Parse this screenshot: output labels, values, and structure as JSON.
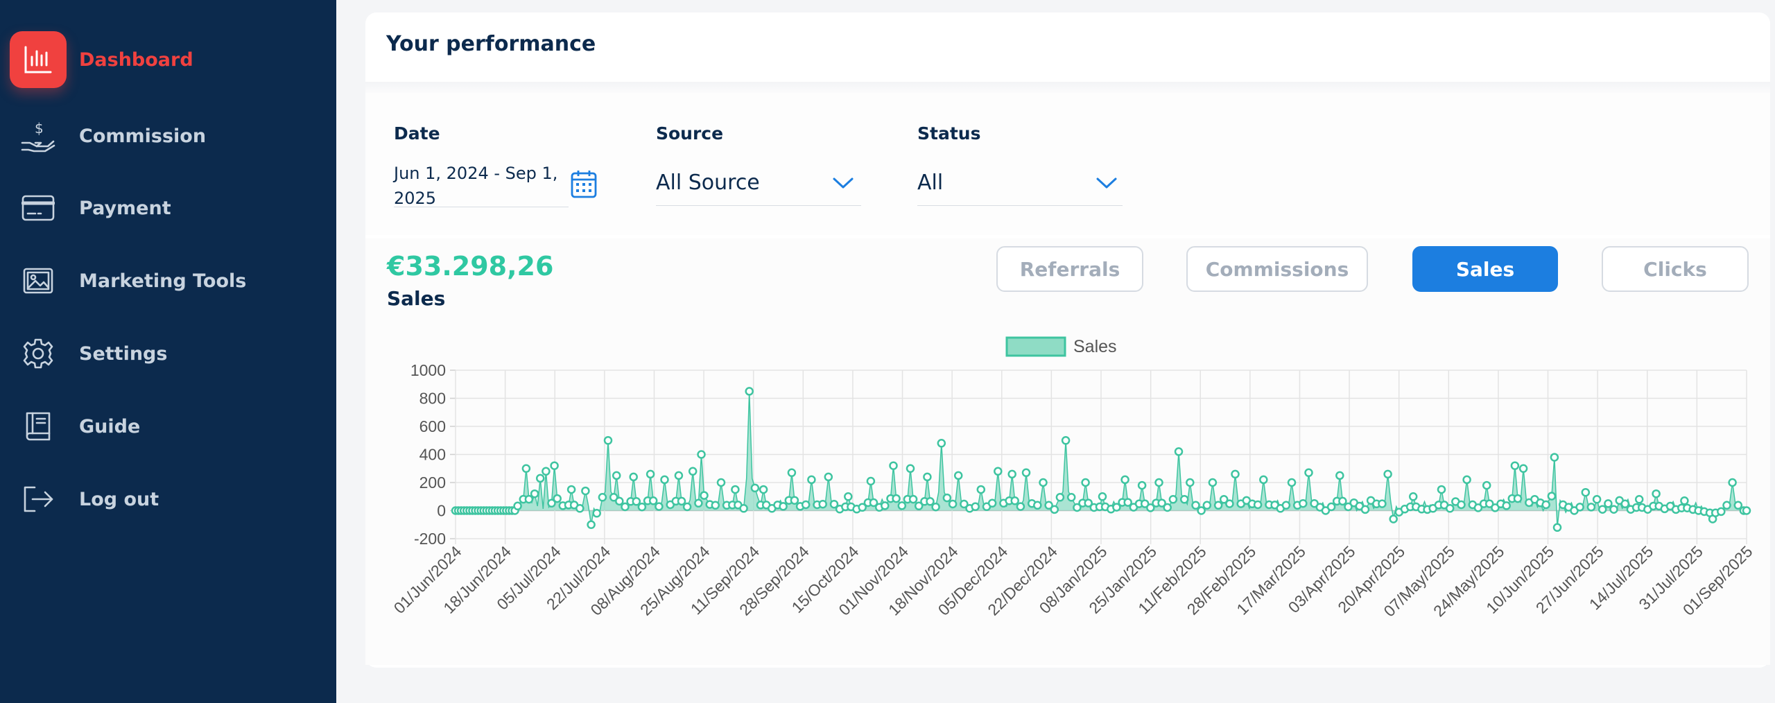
{
  "colors": {
    "sidebar_bg": "#0c2a4d",
    "active_red": "#f0413f",
    "accent_green": "#2fc8a2",
    "primary_blue": "#1c7ee0",
    "series_fill": "#8fdcc5",
    "series_stroke": "#3ec4a0"
  },
  "sidebar": {
    "items": [
      {
        "label": "Dashboard",
        "icon": "bar-chart-icon",
        "active": true
      },
      {
        "label": "Commission",
        "icon": "hand-dollar-icon",
        "active": false
      },
      {
        "label": "Payment",
        "icon": "credit-card-icon",
        "active": false
      },
      {
        "label": "Marketing Tools",
        "icon": "image-icon",
        "active": false
      },
      {
        "label": "Settings",
        "icon": "gear-icon",
        "active": false
      },
      {
        "label": "Guide",
        "icon": "book-icon",
        "active": false
      },
      {
        "label": "Log out",
        "icon": "logout-icon",
        "active": false
      }
    ]
  },
  "card": {
    "title": "Your performance"
  },
  "filters": {
    "date": {
      "label": "Date",
      "value": "Jun 1, 2024 - Sep 1, 2025",
      "icon": "calendar-icon"
    },
    "source": {
      "label": "Source",
      "value": "All Source"
    },
    "status": {
      "label": "Status",
      "value": "All"
    }
  },
  "summary": {
    "amount": "€33.298,26",
    "metric": "Sales"
  },
  "tabs": [
    {
      "label": "Referrals",
      "active": false
    },
    {
      "label": "Commissions",
      "active": false
    },
    {
      "label": "Sales",
      "active": true
    },
    {
      "label": "Clicks",
      "active": false
    }
  ],
  "chart_data": {
    "type": "line",
    "legend": [
      "Sales"
    ],
    "legend_position": "top-center",
    "grid": true,
    "ylim": [
      -200,
      1000
    ],
    "yticks": [
      1000,
      800,
      600,
      400,
      200,
      0,
      -200
    ],
    "x_tick_labels": [
      "01/Jun/2024",
      "18/Jun/2024",
      "05/Jul/2024",
      "22/Jul/2024",
      "08/Aug/2024",
      "25/Aug/2024",
      "11/Sep/2024",
      "28/Sep/2024",
      "15/Oct/2024",
      "01/Nov/2024",
      "18/Nov/2024",
      "05/Dec/2024",
      "22/Dec/2024",
      "08/Jan/2025",
      "25/Jan/2025",
      "11/Feb/2025",
      "28/Feb/2025",
      "17/Mar/2025",
      "03/Apr/2025",
      "20/Apr/2025",
      "07/May/2025",
      "24/May/2025",
      "10/Jun/2025",
      "27/Jun/2025",
      "14/Jul/2025",
      "31/Jul/2025",
      "01/Sep/2025"
    ],
    "series": [
      {
        "name": "Sales",
        "x_start": "2024-06-01",
        "x_end": "2025-09-01",
        "peaks": [
          {
            "date": "2024-06-26",
            "value": 300
          },
          {
            "date": "2024-06-29",
            "value": 120
          },
          {
            "date": "2024-07-01",
            "value": 230
          },
          {
            "date": "2024-07-03",
            "value": 280
          },
          {
            "date": "2024-07-06",
            "value": 320
          },
          {
            "date": "2024-07-12",
            "value": 150
          },
          {
            "date": "2024-07-17",
            "value": 140
          },
          {
            "date": "2024-07-19",
            "value": -100
          },
          {
            "date": "2024-07-25",
            "value": 500
          },
          {
            "date": "2024-07-28",
            "value": 250
          },
          {
            "date": "2024-08-03",
            "value": 240
          },
          {
            "date": "2024-08-09",
            "value": 260
          },
          {
            "date": "2024-08-14",
            "value": 220
          },
          {
            "date": "2024-08-19",
            "value": 250
          },
          {
            "date": "2024-08-24",
            "value": 280
          },
          {
            "date": "2024-08-27",
            "value": 400
          },
          {
            "date": "2024-09-03",
            "value": 200
          },
          {
            "date": "2024-09-08",
            "value": 150
          },
          {
            "date": "2024-09-13",
            "value": 850
          },
          {
            "date": "2024-09-18",
            "value": 150
          },
          {
            "date": "2024-09-28",
            "value": 270
          },
          {
            "date": "2024-10-05",
            "value": 220
          },
          {
            "date": "2024-10-11",
            "value": 240
          },
          {
            "date": "2024-10-18",
            "value": 100
          },
          {
            "date": "2024-10-26",
            "value": 210
          },
          {
            "date": "2024-11-03",
            "value": 320
          },
          {
            "date": "2024-11-09",
            "value": 300
          },
          {
            "date": "2024-11-15",
            "value": 240
          },
          {
            "date": "2024-11-20",
            "value": 480
          },
          {
            "date": "2024-11-26",
            "value": 250
          },
          {
            "date": "2024-12-04",
            "value": 150
          },
          {
            "date": "2024-12-10",
            "value": 280
          },
          {
            "date": "2024-12-15",
            "value": 260
          },
          {
            "date": "2024-12-20",
            "value": 270
          },
          {
            "date": "2024-12-26",
            "value": 200
          },
          {
            "date": "2025-01-03",
            "value": 500
          },
          {
            "date": "2025-01-10",
            "value": 200
          },
          {
            "date": "2025-01-16",
            "value": 100
          },
          {
            "date": "2025-01-24",
            "value": 220
          },
          {
            "date": "2025-01-30",
            "value": 180
          },
          {
            "date": "2025-02-05",
            "value": 200
          },
          {
            "date": "2025-02-12",
            "value": 420
          },
          {
            "date": "2025-02-16",
            "value": 200
          },
          {
            "date": "2025-02-24",
            "value": 200
          },
          {
            "date": "2025-03-04",
            "value": 260
          },
          {
            "date": "2025-03-14",
            "value": 220
          },
          {
            "date": "2025-03-24",
            "value": 200
          },
          {
            "date": "2025-03-30",
            "value": 270
          },
          {
            "date": "2025-04-10",
            "value": 250
          },
          {
            "date": "2025-04-27",
            "value": 260
          },
          {
            "date": "2025-04-29",
            "value": -60
          },
          {
            "date": "2025-05-06",
            "value": 100
          },
          {
            "date": "2025-05-16",
            "value": 150
          },
          {
            "date": "2025-05-25",
            "value": 220
          },
          {
            "date": "2025-06-01",
            "value": 180
          },
          {
            "date": "2025-06-11",
            "value": 320
          },
          {
            "date": "2025-06-14",
            "value": 300
          },
          {
            "date": "2025-06-25",
            "value": 380
          },
          {
            "date": "2025-06-26",
            "value": -120
          },
          {
            "date": "2025-07-06",
            "value": 130
          },
          {
            "date": "2025-07-14",
            "value": 50
          },
          {
            "date": "2025-07-25",
            "value": 80
          },
          {
            "date": "2025-07-31",
            "value": 120
          },
          {
            "date": "2025-08-10",
            "value": 70
          },
          {
            "date": "2025-08-20",
            "value": -60
          },
          {
            "date": "2025-08-27",
            "value": 200
          }
        ]
      }
    ]
  }
}
